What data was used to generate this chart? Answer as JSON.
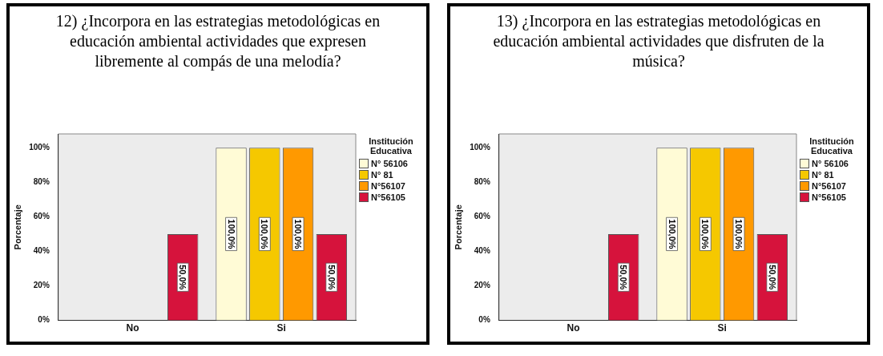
{
  "chart_data": [
    {
      "type": "bar",
      "title": "12) ¿Incorpora en las estrategias metodológicas en educación ambiental actividades que expresen libremente al compás de una melodía?",
      "ylabel": "Porcentaje",
      "legend_title": "Institución Educativa",
      "categories": [
        "No",
        "Si"
      ],
      "series": [
        {
          "name": "N° 56106",
          "color": "#fffbd6",
          "values": [
            null,
            100
          ],
          "value_labels": [
            null,
            "100,0%"
          ]
        },
        {
          "name": "N° 81",
          "color": "#f5c800",
          "values": [
            null,
            100
          ],
          "value_labels": [
            null,
            "100,0%"
          ]
        },
        {
          "name": "N°56107",
          "color": "#ff9900",
          "values": [
            null,
            100
          ],
          "value_labels": [
            null,
            "100,0%"
          ]
        },
        {
          "name": "N°56105",
          "color": "#d6133c",
          "values": [
            50,
            50
          ],
          "value_labels": [
            "50,0%",
            "50,0%"
          ]
        }
      ],
      "ylim": [
        0,
        108
      ],
      "yticks": [
        {
          "value": 0,
          "label": "0%"
        },
        {
          "value": 20,
          "label": "20%"
        },
        {
          "value": 40,
          "label": "40%"
        },
        {
          "value": 60,
          "label": "60%"
        },
        {
          "value": 80,
          "label": "80%"
        },
        {
          "value": 100,
          "label": "100%"
        }
      ],
      "grid": false,
      "legend": "right"
    },
    {
      "type": "bar",
      "title": "13) ¿Incorpora en las estrategias metodológicas en educación ambiental actividades que disfruten de la música?",
      "ylabel": "Porcentaje",
      "legend_title": "Institución Educativa",
      "categories": [
        "No",
        "Si"
      ],
      "series": [
        {
          "name": "N° 56106",
          "color": "#fffbd6",
          "values": [
            null,
            100
          ],
          "value_labels": [
            null,
            "100,0%"
          ]
        },
        {
          "name": "N° 81",
          "color": "#f5c800",
          "values": [
            null,
            100
          ],
          "value_labels": [
            null,
            "100,0%"
          ]
        },
        {
          "name": "N°56107",
          "color": "#ff9900",
          "values": [
            null,
            100
          ],
          "value_labels": [
            null,
            "100,0%"
          ]
        },
        {
          "name": "N°56105",
          "color": "#d6133c",
          "values": [
            50,
            50
          ],
          "value_labels": [
            "50,0%",
            "50,0%"
          ]
        }
      ],
      "ylim": [
        0,
        108
      ],
      "yticks": [
        {
          "value": 0,
          "label": "0%"
        },
        {
          "value": 20,
          "label": "20%"
        },
        {
          "value": 40,
          "label": "40%"
        },
        {
          "value": 60,
          "label": "60%"
        },
        {
          "value": 80,
          "label": "80%"
        },
        {
          "value": 100,
          "label": "100%"
        }
      ],
      "grid": false,
      "legend": "right"
    }
  ]
}
